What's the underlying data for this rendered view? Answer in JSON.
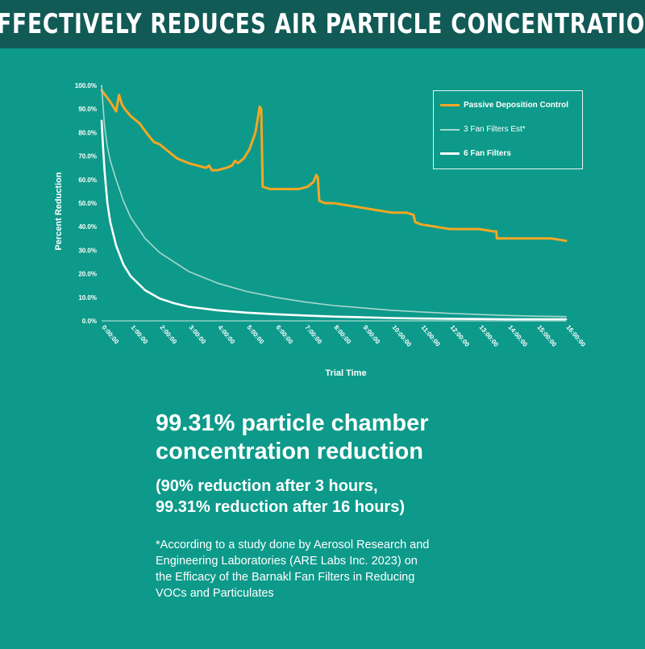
{
  "banner": {
    "title": "Effectively Reduces Air Particle Concentration"
  },
  "chart_data": {
    "type": "line",
    "xlabel": "Trial Time",
    "ylabel": "Percent Reduction",
    "x_ticks": [
      "0:00:00",
      "1:00:00",
      "2:00:00",
      "3:00:00",
      "4:00:00",
      "5:00:00",
      "6:00:00",
      "7:00:00",
      "8:00:00",
      "9:00:00",
      "10:00:00",
      "11:00:00",
      "12:00:00",
      "13:00:00",
      "14:00:00",
      "15:00:00",
      "16:00:00"
    ],
    "y_ticks": [
      "0.0%",
      "10.0%",
      "20.0%",
      "30.0%",
      "40.0%",
      "50.0%",
      "60.0%",
      "70.0%",
      "80.0%",
      "90.0%",
      "100.0%"
    ],
    "xlim": [
      0,
      16
    ],
    "ylim": [
      0,
      100
    ],
    "grid": false,
    "legend_position": "top-right",
    "series": [
      {
        "name": "Passive Deposition Control",
        "color": "#f5a623",
        "x": [
          0,
          0.3,
          0.5,
          0.6,
          0.7,
          0.8,
          1.0,
          1.3,
          1.6,
          1.8,
          2.0,
          2.3,
          2.6,
          3.0,
          3.3,
          3.6,
          3.7,
          3.8,
          4.0,
          4.3,
          4.5,
          4.6,
          4.7,
          4.9,
          5.1,
          5.3,
          5.45,
          5.5,
          5.55,
          5.8,
          6.2,
          6.5,
          6.8,
          7.1,
          7.3,
          7.4,
          7.45,
          7.5,
          7.7,
          8.0,
          8.5,
          9.0,
          9.5,
          10.0,
          10.5,
          10.75,
          10.8,
          11.0,
          11.5,
          12.0,
          12.5,
          13.0,
          13.5,
          13.6,
          13.62,
          13.7,
          14.0,
          14.5,
          15.0,
          15.5,
          16.0
        ],
        "values": [
          98,
          93,
          89,
          96,
          92,
          90,
          87,
          84,
          79,
          76,
          75,
          72,
          69,
          67,
          66,
          65,
          66,
          64,
          64,
          65,
          66,
          68,
          67,
          69,
          73,
          80,
          91,
          90,
          57,
          56,
          56,
          56,
          56,
          57,
          59,
          62,
          61,
          51,
          50,
          50,
          49,
          48,
          47,
          46,
          46,
          45,
          42,
          41,
          40,
          39,
          39,
          39,
          38,
          38,
          35,
          35,
          35,
          35,
          35,
          35,
          34
        ]
      },
      {
        "name": "3 Fan Filters Est*",
        "color": "#a8d8cf",
        "x": [
          0,
          0.1,
          0.2,
          0.3,
          0.5,
          0.75,
          1.0,
          1.5,
          2.0,
          3.0,
          4.0,
          5.0,
          6.0,
          7.0,
          8.0,
          9.0,
          10.0,
          11.0,
          12.0,
          13.0,
          14.0,
          15.0,
          16.0
        ],
        "values": [
          100,
          83,
          74,
          68,
          60,
          51,
          44,
          35,
          29,
          21,
          16,
          12.5,
          10,
          8,
          6.5,
          5.5,
          4.5,
          3.8,
          3.2,
          2.7,
          2.3,
          2,
          1.8
        ]
      },
      {
        "name": "6 Fan Filters",
        "color": "#ffffff",
        "x": [
          0,
          0.05,
          0.1,
          0.2,
          0.3,
          0.5,
          0.75,
          1.0,
          1.5,
          2.0,
          2.5,
          3.0,
          4.0,
          5.0,
          6.0,
          7.0,
          8.0,
          9.0,
          10.0,
          11.0,
          12.0,
          13.0,
          14.0,
          15.0,
          16.0
        ],
        "values": [
          85,
          74,
          64,
          50,
          42,
          32,
          24,
          19,
          13,
          9.5,
          7.5,
          6,
          4.5,
          3.5,
          2.8,
          2.3,
          1.8,
          1.5,
          1.2,
          1,
          0.9,
          0.8,
          0.7,
          0.7,
          0.69
        ]
      }
    ]
  },
  "headline": {
    "line1": "99.31% particle chamber",
    "line2": "concentration reduction"
  },
  "sub": {
    "line1": "(90% reduction after 3 hours,",
    "line2": "99.31% reduction after 16 hours)"
  },
  "note": {
    "line1": "*According to a study done by Aerosol Research and",
    "line2": "Engineering Laboratories (ARE Labs Inc. 2023) on",
    "line3": "the Efficacy of the Barnakl Fan Filters in Reducing",
    "line4": "VOCs and Particulates"
  }
}
